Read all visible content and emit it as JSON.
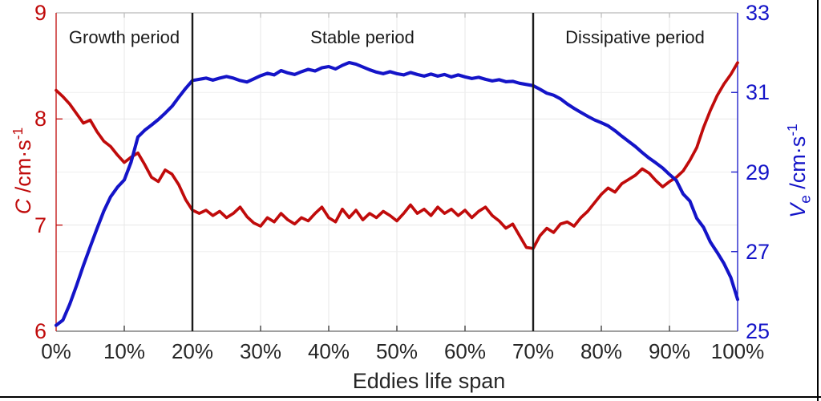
{
  "figure": {
    "background": "#ffffff",
    "border_color": "#000000"
  },
  "chart_data": {
    "type": "line",
    "xlabel": "Eddies life span",
    "grid": true,
    "x_axis": {
      "tick_labels": [
        "0%",
        "10%",
        "20%",
        "30%",
        "40%",
        "50%",
        "60%",
        "70%",
        "80%",
        "90%",
        "100%"
      ],
      "tick_values": [
        0,
        10,
        20,
        30,
        40,
        50,
        60,
        70,
        80,
        90,
        100
      ],
      "range": [
        0,
        100
      ],
      "color": "#262626"
    },
    "left_axis": {
      "label": {
        "symbol": "C",
        "unit": " /cm·s",
        "exponent": "-1"
      },
      "ticks": [
        6,
        7,
        8,
        9
      ],
      "range": [
        6,
        9
      ],
      "color": "#c00b0b"
    },
    "right_axis": {
      "label": {
        "symbol": "V",
        "subscript": "e",
        "unit": " /cm·s",
        "exponent": "-1"
      },
      "ticks": [
        25,
        27,
        29,
        31,
        33
      ],
      "range": [
        25,
        33
      ],
      "color": "#1414c8"
    },
    "annotations": [
      {
        "text": "Growth period",
        "x_pct": 10
      },
      {
        "text": "Stable period",
        "x_pct": 45
      },
      {
        "text": "Dissipative period",
        "x_pct": 85
      }
    ],
    "dividers_x_pct": [
      20,
      70
    ],
    "x": [
      0,
      1,
      2,
      3,
      4,
      5,
      6,
      7,
      8,
      9,
      10,
      11,
      12,
      13,
      14,
      15,
      16,
      17,
      18,
      19,
      20,
      21,
      22,
      23,
      24,
      25,
      26,
      27,
      28,
      29,
      30,
      31,
      32,
      33,
      34,
      35,
      36,
      37,
      38,
      39,
      40,
      41,
      42,
      43,
      44,
      45,
      46,
      47,
      48,
      49,
      50,
      51,
      52,
      53,
      54,
      55,
      56,
      57,
      58,
      59,
      60,
      61,
      62,
      63,
      64,
      65,
      66,
      67,
      68,
      69,
      70,
      71,
      72,
      73,
      74,
      75,
      76,
      77,
      78,
      79,
      80,
      81,
      82,
      83,
      84,
      85,
      86,
      87,
      88,
      89,
      90,
      91,
      92,
      93,
      94,
      95,
      96,
      97,
      98,
      99,
      100
    ],
    "series": [
      {
        "name": "C",
        "axis": "left",
        "color": "#c00b0b",
        "values": [
          8.27,
          8.21,
          8.14,
          8.05,
          7.96,
          7.99,
          7.88,
          7.79,
          7.74,
          7.66,
          7.59,
          7.64,
          7.68,
          7.57,
          7.45,
          7.41,
          7.52,
          7.48,
          7.38,
          7.24,
          7.14,
          7.11,
          7.14,
          7.09,
          7.13,
          7.07,
          7.11,
          7.17,
          7.08,
          7.02,
          6.99,
          7.07,
          7.03,
          7.11,
          7.05,
          7.01,
          7.07,
          7.04,
          7.11,
          7.17,
          7.07,
          7.03,
          7.15,
          7.07,
          7.14,
          7.05,
          7.11,
          7.07,
          7.13,
          7.09,
          7.04,
          7.11,
          7.19,
          7.11,
          7.15,
          7.09,
          7.17,
          7.11,
          7.15,
          7.09,
          7.14,
          7.07,
          7.13,
          7.17,
          7.09,
          7.04,
          6.97,
          7.01,
          6.9,
          6.79,
          6.78,
          6.9,
          6.97,
          6.93,
          7.01,
          7.03,
          6.99,
          7.07,
          7.13,
          7.21,
          7.29,
          7.35,
          7.31,
          7.39,
          7.43,
          7.47,
          7.53,
          7.49,
          7.42,
          7.36,
          7.41,
          7.45,
          7.51,
          7.61,
          7.73,
          7.92,
          8.08,
          8.22,
          8.33,
          8.42,
          8.53
        ]
      },
      {
        "name": "Ve",
        "axis": "right",
        "color": "#1414c8",
        "values": [
          25.15,
          25.28,
          25.68,
          26.15,
          26.65,
          27.12,
          27.58,
          28.02,
          28.38,
          28.62,
          28.8,
          29.25,
          29.88,
          30.05,
          30.18,
          30.32,
          30.48,
          30.65,
          30.88,
          31.1,
          31.3,
          31.33,
          31.36,
          31.31,
          31.36,
          31.4,
          31.36,
          31.3,
          31.26,
          31.34,
          31.42,
          31.48,
          31.44,
          31.55,
          31.49,
          31.45,
          31.52,
          31.58,
          31.54,
          31.62,
          31.65,
          31.59,
          31.68,
          31.75,
          31.71,
          31.64,
          31.57,
          31.51,
          31.47,
          31.52,
          31.47,
          31.44,
          31.5,
          31.45,
          31.41,
          31.46,
          31.41,
          31.45,
          31.39,
          31.44,
          31.39,
          31.35,
          31.38,
          31.33,
          31.29,
          31.32,
          31.27,
          31.28,
          31.23,
          31.2,
          31.17,
          31.08,
          30.98,
          30.93,
          30.84,
          30.71,
          30.6,
          30.5,
          30.4,
          30.31,
          30.24,
          30.16,
          30.04,
          29.9,
          29.77,
          29.64,
          29.49,
          29.35,
          29.23,
          29.1,
          28.94,
          28.79,
          28.45,
          28.27,
          27.84,
          27.61,
          27.24,
          26.98,
          26.7,
          26.35,
          25.8
        ]
      }
    ]
  }
}
